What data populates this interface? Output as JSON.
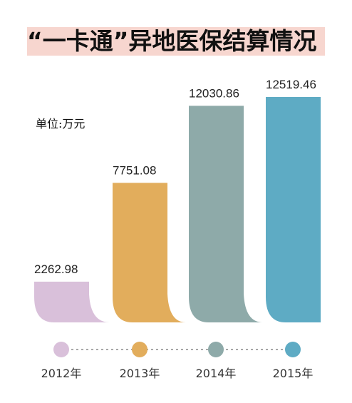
{
  "chart_data": {
    "type": "bar",
    "title": "“一卡通”异地医保结算情况",
    "unit": "单位:万元",
    "categories": [
      "2012年",
      "2013年",
      "2014年",
      "2015年"
    ],
    "values": [
      2262.98,
      7751.08,
      12030.86,
      12519.46
    ],
    "value_labels": [
      "2262.98",
      "7751.08",
      "12030.86",
      "12519.46"
    ],
    "colors": [
      "#d9c0da",
      "#e2ad5c",
      "#8eaaa9",
      "#5eabc4"
    ],
    "legend": "bottom",
    "grid": false
  }
}
